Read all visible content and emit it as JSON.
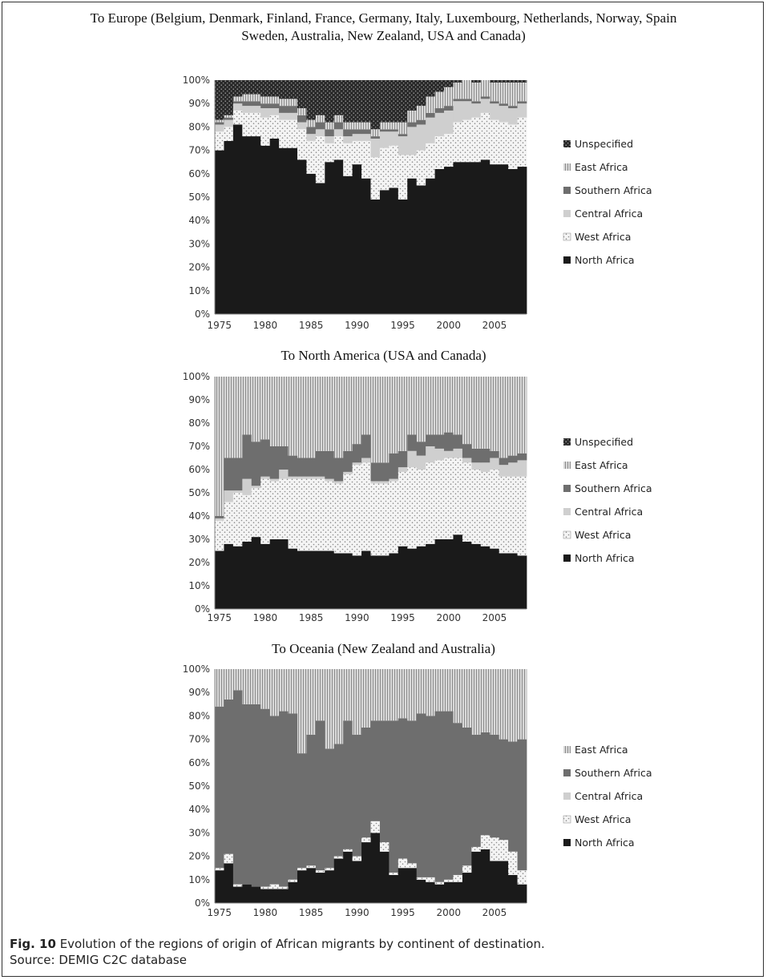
{
  "figure": {
    "title_line1": "To Europe (Belgium, Denmark, Finland, France, Germany, Italy, Luxembourg, Netherlands, Norway, Spain",
    "title_line2": "Sweden, Australia, New Zealand, USA and Canada)",
    "caption_label": "Fig. 10",
    "caption_text": " Evolution of the regions of origin of African migrants by continent of destination.",
    "source": "Source: DEMIG C2C database"
  },
  "colors": {
    "north": "#1a1a1a",
    "west_bg": "#f4f4f4",
    "west_dot": "#8a8a8a",
    "central": "#cfcfcf",
    "southern": "#6e6e6e",
    "east_bg": "#d9d9d9",
    "east_line": "#8c8c8c",
    "unspec_bg": "#2a2a2a",
    "unspec_dot": "#bbbbbb"
  },
  "chart_data": [
    {
      "type": "area",
      "title": "",
      "stacked": true,
      "percent": true,
      "x": [
        1975,
        1976,
        1977,
        1978,
        1979,
        1980,
        1981,
        1982,
        1983,
        1984,
        1985,
        1986,
        1987,
        1988,
        1989,
        1990,
        1991,
        1992,
        1993,
        1994,
        1995,
        1996,
        1997,
        1998,
        1999,
        2000,
        2001,
        2002,
        2003,
        2004,
        2005,
        2006,
        2007,
        2008
      ],
      "ylim": [
        0,
        100
      ],
      "yticks": [
        "0%",
        "10%",
        "20%",
        "30%",
        "40%",
        "50%",
        "60%",
        "70%",
        "80%",
        "90%",
        "100%"
      ],
      "xticks": [
        "1975",
        "1980",
        "1985",
        "1990",
        "1995",
        "2000",
        "2005"
      ],
      "series": [
        {
          "name": "North Africa",
          "key": "north",
          "values": [
            70,
            74,
            81,
            76,
            76,
            72,
            75,
            71,
            71,
            66,
            60,
            56,
            65,
            66,
            59,
            64,
            58,
            49,
            53,
            54,
            49,
            58,
            55,
            58,
            62,
            63,
            65,
            65,
            65,
            66,
            64,
            64,
            62,
            63
          ]
        },
        {
          "name": "West Africa",
          "key": "west",
          "values": [
            8,
            6,
            6,
            10,
            10,
            12,
            10,
            12,
            12,
            13,
            14,
            20,
            8,
            10,
            14,
            10,
            16,
            18,
            18,
            18,
            19,
            10,
            15,
            15,
            14,
            14,
            17,
            18,
            19,
            20,
            19,
            18,
            19,
            21
          ]
        },
        {
          "name": "Central Africa",
          "key": "central",
          "values": [
            3,
            3,
            3,
            3,
            3,
            4,
            3,
            3,
            3,
            3,
            3,
            3,
            3,
            3,
            3,
            3,
            3,
            8,
            7,
            6,
            8,
            12,
            11,
            11,
            10,
            10,
            9,
            8,
            6,
            6,
            7,
            7,
            7,
            6
          ]
        },
        {
          "name": "Southern Africa",
          "key": "southern",
          "values": [
            1,
            1,
            1,
            2,
            2,
            2,
            2,
            3,
            3,
            3,
            3,
            3,
            3,
            3,
            3,
            2,
            2,
            1,
            1,
            1,
            1,
            2,
            2,
            2,
            2,
            2,
            1,
            1,
            1,
            1,
            1,
            1,
            1,
            1
          ]
        },
        {
          "name": "East Africa",
          "key": "east",
          "values": [
            1,
            1,
            2,
            3,
            3,
            3,
            3,
            3,
            3,
            3,
            3,
            3,
            3,
            3,
            3,
            3,
            3,
            3,
            3,
            3,
            5,
            5,
            6,
            7,
            7,
            8,
            7,
            8,
            8,
            7,
            8,
            9,
            10,
            8
          ]
        },
        {
          "name": "Unspecified",
          "key": "unspec",
          "values": [
            17,
            15,
            7,
            6,
            6,
            7,
            7,
            8,
            8,
            12,
            17,
            15,
            18,
            15,
            18,
            18,
            18,
            21,
            18,
            18,
            18,
            13,
            11,
            7,
            5,
            3,
            1,
            0,
            1,
            0,
            1,
            1,
            1,
            1
          ]
        }
      ],
      "legend_order": [
        "Unspecified",
        "East Africa",
        "Southern Africa",
        "Central Africa",
        "West Africa",
        "North Africa"
      ]
    },
    {
      "type": "area",
      "title": "To North America (USA and Canada)",
      "stacked": true,
      "percent": true,
      "x": [
        1975,
        1976,
        1977,
        1978,
        1979,
        1980,
        1981,
        1982,
        1983,
        1984,
        1985,
        1986,
        1987,
        1988,
        1989,
        1990,
        1991,
        1992,
        1993,
        1994,
        1995,
        1996,
        1997,
        1998,
        1999,
        2000,
        2001,
        2002,
        2003,
        2004,
        2005,
        2006,
        2007,
        2008
      ],
      "ylim": [
        0,
        100
      ],
      "yticks": [
        "0%",
        "10%",
        "20%",
        "30%",
        "40%",
        "50%",
        "60%",
        "70%",
        "80%",
        "90%",
        "100%"
      ],
      "xticks": [
        "1975",
        "1980",
        "1985",
        "1990",
        "1995",
        "2000",
        "2005"
      ],
      "series": [
        {
          "name": "North Africa",
          "key": "north",
          "values": [
            25,
            28,
            27,
            29,
            31,
            28,
            30,
            30,
            26,
            25,
            25,
            25,
            25,
            24,
            24,
            23,
            25,
            23,
            23,
            24,
            27,
            26,
            27,
            28,
            30,
            30,
            32,
            29,
            28,
            27,
            26,
            24,
            24,
            23
          ]
        },
        {
          "name": "West Africa",
          "key": "west",
          "values": [
            13,
            18,
            23,
            20,
            21,
            28,
            25,
            26,
            30,
            31,
            31,
            31,
            30,
            30,
            34,
            39,
            38,
            31,
            31,
            31,
            32,
            35,
            33,
            35,
            34,
            35,
            33,
            34,
            32,
            32,
            34,
            33,
            33,
            34
          ]
        },
        {
          "name": "Central Africa",
          "key": "central",
          "values": [
            1,
            5,
            1,
            7,
            1,
            1,
            1,
            4,
            1,
            1,
            1,
            1,
            1,
            1,
            1,
            1,
            2,
            1,
            1,
            1,
            2,
            7,
            6,
            7,
            5,
            3,
            4,
            2,
            3,
            4,
            5,
            5,
            6,
            7
          ]
        },
        {
          "name": "Southern Africa",
          "key": "southern",
          "values": [
            1,
            14,
            14,
            19,
            19,
            16,
            14,
            10,
            9,
            8,
            8,
            11,
            12,
            10,
            9,
            8,
            10,
            8,
            8,
            11,
            7,
            7,
            6,
            5,
            6,
            8,
            6,
            6,
            6,
            6,
            3,
            3,
            3,
            3
          ]
        },
        {
          "name": "East Africa",
          "key": "east",
          "values": [
            60,
            35,
            35,
            25,
            28,
            27,
            30,
            30,
            34,
            35,
            35,
            32,
            32,
            35,
            32,
            29,
            25,
            37,
            37,
            33,
            32,
            25,
            28,
            25,
            25,
            24,
            25,
            29,
            31,
            31,
            32,
            35,
            34,
            33
          ]
        },
        {
          "name": "Unspecified",
          "key": "unspec",
          "values": [
            0,
            0,
            0,
            0,
            0,
            0,
            0,
            0,
            0,
            0,
            0,
            0,
            0,
            0,
            0,
            0,
            0,
            0,
            0,
            0,
            0,
            0,
            0,
            0,
            0,
            0,
            0,
            0,
            0,
            0,
            0,
            0,
            0,
            0
          ]
        }
      ],
      "legend_order": [
        "Unspecified",
        "East Africa",
        "Southern Africa",
        "Central Africa",
        "West Africa",
        "North Africa"
      ]
    },
    {
      "type": "area",
      "title": "To Oceania (New Zealand and Australia)",
      "stacked": true,
      "percent": true,
      "x": [
        1975,
        1976,
        1977,
        1978,
        1979,
        1980,
        1981,
        1982,
        1983,
        1984,
        1985,
        1986,
        1987,
        1988,
        1989,
        1990,
        1991,
        1992,
        1993,
        1994,
        1995,
        1996,
        1997,
        1998,
        1999,
        2000,
        2001,
        2002,
        2003,
        2004,
        2005,
        2006,
        2007,
        2008
      ],
      "ylim": [
        0,
        100
      ],
      "yticks": [
        "0%",
        "10%",
        "20%",
        "30%",
        "40%",
        "50%",
        "60%",
        "70%",
        "80%",
        "90%",
        "100%"
      ],
      "xticks": [
        "1975",
        "1980",
        "1985",
        "1990",
        "1995",
        "2000",
        "2005"
      ],
      "series": [
        {
          "name": "North Africa",
          "key": "north",
          "values": [
            14,
            17,
            7,
            8,
            7,
            6,
            6,
            6,
            9,
            14,
            15,
            13,
            14,
            19,
            22,
            18,
            26,
            30,
            22,
            12,
            15,
            15,
            10,
            9,
            8,
            9,
            9,
            13,
            22,
            23,
            18,
            18,
            12,
            8
          ]
        },
        {
          "name": "West Africa",
          "key": "west",
          "values": [
            1,
            4,
            1,
            0,
            0,
            1,
            2,
            1,
            1,
            1,
            1,
            1,
            1,
            1,
            1,
            2,
            2,
            5,
            4,
            1,
            4,
            2,
            1,
            2,
            1,
            1,
            3,
            3,
            2,
            6,
            10,
            9,
            10,
            6
          ]
        },
        {
          "name": "Central Africa",
          "key": "central",
          "values": [
            0,
            0,
            0,
            0,
            0,
            0,
            0,
            0,
            0,
            0,
            0,
            0,
            0,
            0,
            0,
            0,
            0,
            0,
            0,
            0,
            0,
            0,
            0,
            0,
            0,
            0,
            0,
            0,
            0,
            0,
            0,
            0,
            0,
            0
          ]
        },
        {
          "name": "Southern Africa",
          "key": "southern",
          "values": [
            69,
            66,
            83,
            77,
            78,
            76,
            72,
            75,
            71,
            49,
            56,
            64,
            51,
            48,
            55,
            52,
            47,
            43,
            52,
            65,
            60,
            61,
            70,
            69,
            73,
            72,
            65,
            59,
            48,
            44,
            44,
            43,
            47,
            56
          ]
        },
        {
          "name": "East Africa",
          "key": "east",
          "values": [
            16,
            13,
            9,
            15,
            15,
            17,
            20,
            18,
            19,
            36,
            28,
            22,
            34,
            32,
            22,
            28,
            25,
            22,
            22,
            22,
            21,
            22,
            19,
            20,
            18,
            18,
            23,
            25,
            28,
            27,
            28,
            30,
            31,
            30
          ]
        }
      ],
      "legend_order": [
        "East Africa",
        "Southern Africa",
        "Central Africa",
        "West Africa",
        "North Africa"
      ]
    }
  ]
}
